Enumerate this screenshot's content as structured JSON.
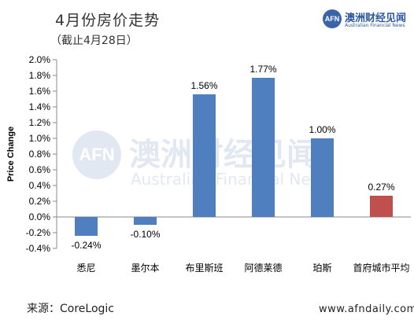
{
  "header": {
    "title": "4月份房价走势",
    "subtitle": "（截止4月28日）"
  },
  "logo": {
    "mark": "AFN",
    "cn": "澳洲财经见闻",
    "en": "Australian Financial News"
  },
  "watermark": {
    "mark": "AFN",
    "cn": "澳洲财经见闻",
    "en": "Australian Financial News"
  },
  "footer": {
    "source": "来源：CoreLogic",
    "site": "www.afndaily.com"
  },
  "colors": {
    "default_bar": "#4f7fbf",
    "highlight_bar": "#c0504d"
  },
  "chart_data": {
    "type": "bar",
    "ylabel": "Price Change",
    "ylim": [
      -0.4,
      2.0
    ],
    "yticks": [
      "-0.4%",
      "-0.2%",
      "0.0%",
      "0.2%",
      "0.4%",
      "0.6%",
      "0.8%",
      "1.0%",
      "1.2%",
      "1.4%",
      "1.6%",
      "1.8%",
      "2.0%"
    ],
    "grid": false,
    "categories": [
      "悉尼",
      "墨尔本",
      "布里斯班",
      "阿德莱德",
      "珀斯",
      "首府城市平均"
    ],
    "values": [
      -0.24,
      -0.1,
      1.56,
      1.77,
      1.0,
      0.27
    ],
    "labels": [
      "-0.24%",
      "-0.10%",
      "1.56%",
      "1.77%",
      "1.00%",
      "0.27%"
    ],
    "highlight_index": 5
  }
}
